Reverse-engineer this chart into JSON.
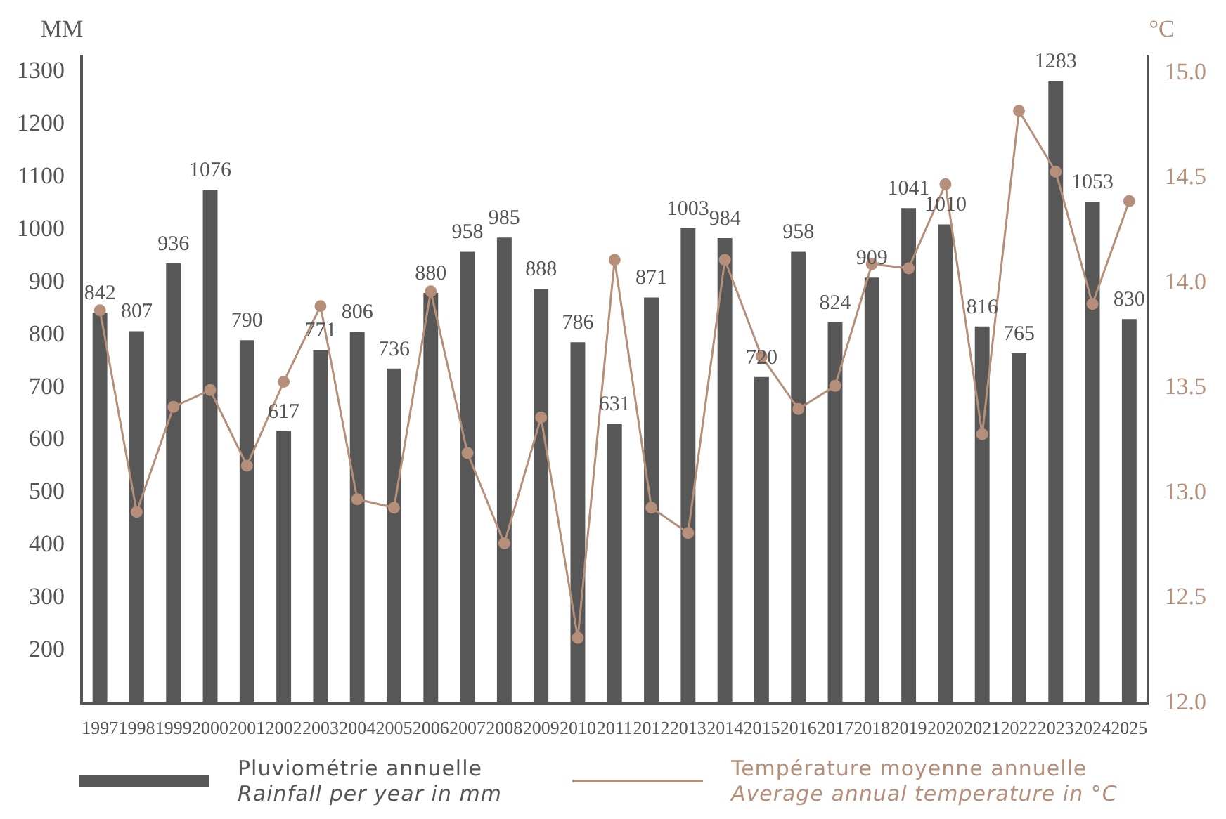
{
  "chart_data": {
    "type": "bar",
    "ylabel": "MM",
    "y2label": "°C",
    "categories": [
      "1997",
      "1998",
      "1999",
      "2000",
      "2001",
      "2002",
      "2003",
      "2004",
      "2005",
      "2006",
      "2007",
      "2008",
      "2009",
      "2010",
      "2011",
      "2012",
      "2013",
      "2014",
      "2015",
      "2016",
      "2017",
      "2018",
      "2019",
      "2020",
      "2021",
      "2022",
      "2023",
      "2024",
      "2025"
    ],
    "series": [
      {
        "name": "Pluviométrie annuelle\nRainfall per year in mm",
        "color": "#575757",
        "values": [
          842,
          807,
          936,
          1076,
          790,
          617,
          771,
          806,
          736,
          880,
          958,
          985,
          888,
          786,
          631,
          871,
          1003,
          984,
          720,
          958,
          824,
          909,
          1041,
          1010,
          816,
          765,
          1283,
          1053,
          830
        ],
        "value_labels": [
          "842",
          "807",
          "936",
          "1076",
          "790",
          "617",
          "771",
          "806",
          "736",
          "880",
          "958",
          "985",
          "888",
          "786",
          "631",
          "871",
          "1003",
          "984",
          "720",
          "958",
          "824",
          "909",
          "1041",
          "1010",
          "816",
          "765",
          "1283",
          "1053",
          "830"
        ]
      },
      {
        "name": "Température moyenne annuelle\nAverage annual temperature in °C",
        "type": "line",
        "axis": "y2",
        "color": "#b58f7a",
        "values": [
          13.87,
          12.91,
          13.41,
          13.49,
          13.13,
          13.53,
          13.89,
          12.97,
          12.93,
          13.96,
          13.19,
          12.76,
          13.36,
          12.31,
          14.11,
          12.93,
          12.81,
          14.11,
          13.65,
          13.4,
          13.51,
          14.09,
          14.07,
          14.47,
          13.28,
          14.82,
          14.53,
          13.9,
          14.39
        ]
      }
    ],
    "ylim": [
      100,
      1330
    ],
    "yticks": [
      200,
      300,
      400,
      500,
      600,
      700,
      800,
      900,
      1000,
      1100,
      1200,
      1300
    ],
    "y2lim": [
      12,
      15.08
    ],
    "y2ticks": [
      {
        "value": 12,
        "label": "12.0"
      },
      {
        "value": 12.5,
        "label": "12.5"
      },
      {
        "value": 13,
        "label": "13.0"
      },
      {
        "value": 13.5,
        "label": "13.5"
      },
      {
        "value": 14,
        "label": "14.0"
      },
      {
        "value": 14.5,
        "label": "14.5"
      },
      {
        "value": 15,
        "label": "15.0"
      }
    ],
    "grid": false,
    "legend": "bottom",
    "marker": "circle",
    "line_style": "solid"
  }
}
